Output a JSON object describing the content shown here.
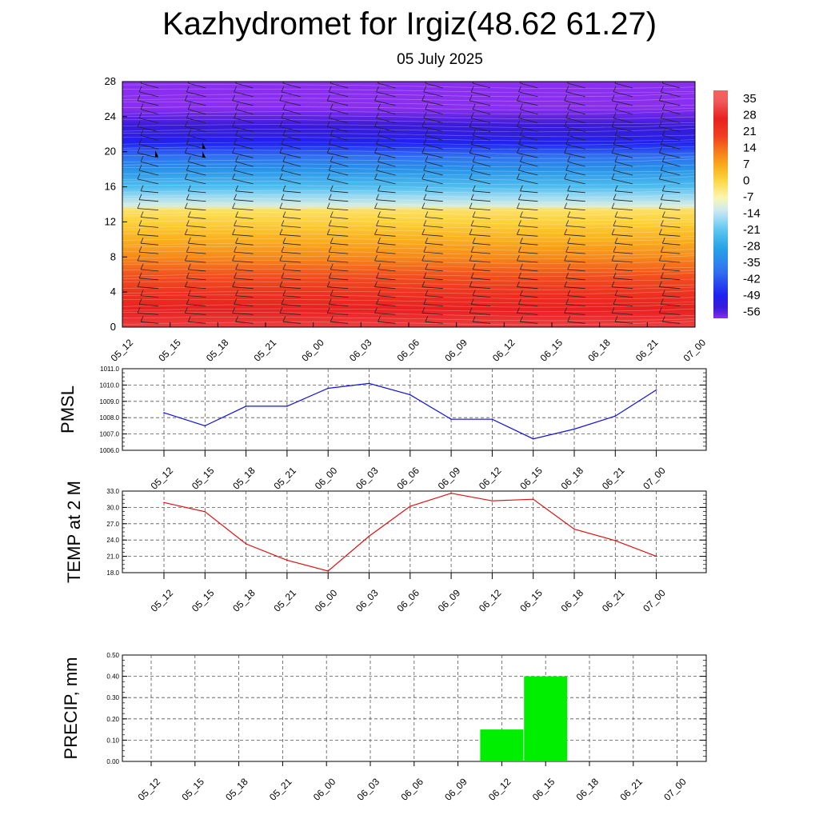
{
  "header": {
    "title": "Kazhydromet for Irgiz(48.62 61.27)",
    "subtitle": "05 July 2025"
  },
  "chart_data": [
    {
      "type": "heatmap",
      "title": "",
      "xlabel": "",
      "ylabel": "",
      "categories": [
        "05_12",
        "05_15",
        "05_18",
        "05_21",
        "06_00",
        "06_03",
        "06_06",
        "06_09",
        "06_12",
        "06_15",
        "06_18",
        "06_21",
        "07_00"
      ],
      "y_ticks": [
        "0",
        "4",
        "8",
        "12",
        "16",
        "20",
        "24",
        "28"
      ],
      "ylim": [
        0,
        28
      ],
      "colorbar": {
        "labels": [
          "35",
          "28",
          "21",
          "14",
          "7",
          "0",
          "-7",
          "-14",
          "-21",
          "-28",
          "-35",
          "-42",
          "-49",
          "-56"
        ],
        "range": [
          -60,
          38
        ]
      },
      "temperature_profile": [
        {
          "y": 0,
          "t": 30
        },
        {
          "y": 2,
          "t": 26
        },
        {
          "y": 4,
          "t": 21
        },
        {
          "y": 6,
          "t": 16
        },
        {
          "y": 8,
          "t": 10
        },
        {
          "y": 10,
          "t": 5
        },
        {
          "y": 12,
          "t": 0
        },
        {
          "y": 13.4,
          "t": -3
        },
        {
          "y": 13.8,
          "t": -12
        },
        {
          "y": 15,
          "t": -18
        },
        {
          "y": 16,
          "t": -24
        },
        {
          "y": 18,
          "t": -33
        },
        {
          "y": 19.5,
          "t": -40
        },
        {
          "y": 21,
          "t": -50
        },
        {
          "y": 22,
          "t": -54
        },
        {
          "y": 23,
          "t": -56
        },
        {
          "y": 25,
          "t": -60
        },
        {
          "y": 28,
          "t": -60
        }
      ],
      "colors": {
        "warm": [
          "#f06060",
          "#e82020",
          "#f04020",
          "#f57a1a",
          "#f9a91a",
          "#fcd23a",
          "#fdf7b0"
        ],
        "cold": [
          "#c9e8f5",
          "#5cc6f0",
          "#25a2e6",
          "#3070f0",
          "#1f22f0",
          "#3a1ad8",
          "#8a2ef0"
        ]
      }
    },
    {
      "type": "line",
      "ylabel": "PMSL",
      "ylim": [
        1006.0,
        1011.0
      ],
      "y_ticks": [
        "1011.0",
        "1010.0",
        "1009.0",
        "1008.0",
        "1007.0",
        "1006.0"
      ],
      "categories": [
        "05_12",
        "05_15",
        "05_18",
        "05_21",
        "06_00",
        "06_03",
        "06_06",
        "06_09",
        "06_12",
        "06_15",
        "06_18",
        "06_21",
        "07_00"
      ],
      "series": [
        {
          "values": [
            1008.3,
            1007.5,
            1008.7,
            1008.7,
            1009.8,
            1010.1,
            1009.4,
            1007.9,
            1007.9,
            1006.7,
            1007.3,
            1008.1,
            1009.7
          ],
          "color": "#1010e0"
        }
      ]
    },
    {
      "type": "line",
      "ylabel": "TEMP at 2 M",
      "ylim": [
        18.0,
        33.0
      ],
      "y_ticks": [
        "33.0",
        "30.0",
        "27.0",
        "24.0",
        "21.0",
        "18.0"
      ],
      "categories": [
        "05_12",
        "05_15",
        "05_18",
        "05_21",
        "06_00",
        "06_03",
        "06_06",
        "06_09",
        "06_12",
        "06_15",
        "06_18",
        "06_21",
        "07_00"
      ],
      "series": [
        {
          "values": [
            30.9,
            29.2,
            23.3,
            20.3,
            18.3,
            24.7,
            30.2,
            32.6,
            31.2,
            31.5,
            26.0,
            23.9,
            21.0
          ],
          "color": "#e01010"
        }
      ]
    },
    {
      "type": "bar",
      "ylabel": "PRECIP, mm",
      "ylim": [
        0.0,
        0.5
      ],
      "y_ticks": [
        "0.50",
        "0.40",
        "0.30",
        "0.20",
        "0.10",
        "0.00"
      ],
      "categories": [
        "05_12",
        "05_15",
        "05_18",
        "05_21",
        "06_00",
        "06_03",
        "06_06",
        "06_09",
        "06_12",
        "06_15",
        "06_18",
        "06_21",
        "07_00"
      ],
      "values": [
        0,
        0,
        0,
        0,
        0,
        0,
        0,
        0,
        0.15,
        0.4,
        0,
        0,
        0
      ],
      "color": "#00ee00"
    }
  ]
}
